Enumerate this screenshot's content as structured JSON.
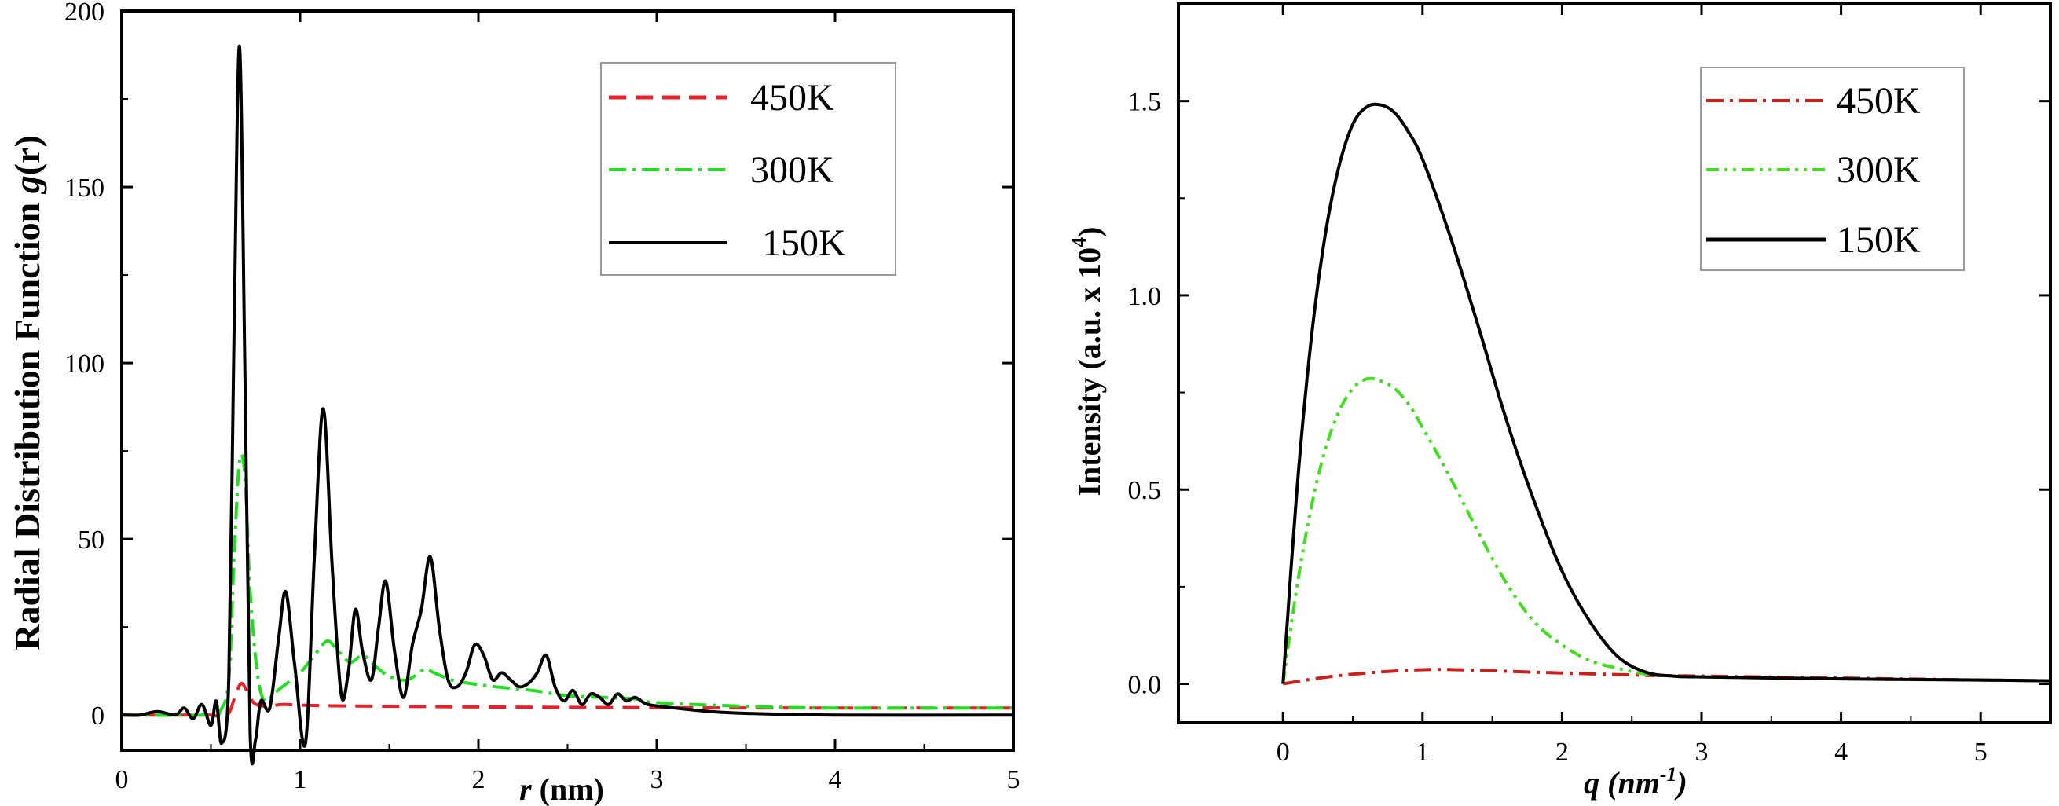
{
  "chart_data": [
    {
      "type": "line",
      "xlabel_var": "r",
      "xlabel_unit": "(nm)",
      "ylabel": "Radial Distribution Function",
      "ylabel_var": "g",
      "ylabel_arg": "(r)",
      "xlim": [
        0,
        5
      ],
      "ylim": [
        -10,
        200
      ],
      "xticks": [
        "0",
        "1",
        "2",
        "3",
        "4",
        "5"
      ],
      "yticks": [
        "0",
        "50",
        "100",
        "150",
        "200"
      ],
      "xtick_values": [
        0,
        1,
        2,
        3,
        4,
        5
      ],
      "ytick_values": [
        0,
        50,
        100,
        150,
        200
      ],
      "legend_position": "top-right",
      "series": [
        {
          "name": "450K",
          "color": "#e8202a",
          "style": "dashed",
          "x": [
            0,
            0.3,
            0.5,
            0.55,
            0.6,
            0.64,
            0.67,
            0.7,
            0.74,
            0.8,
            0.9,
            1.0,
            1.2,
            1.5,
            2.0,
            3.0,
            4.0,
            5.0
          ],
          "y": [
            0,
            0,
            0,
            -0.5,
            0.5,
            6,
            9,
            7,
            3.5,
            2.5,
            3,
            2.8,
            2.6,
            2.5,
            2.3,
            2.1,
            2.0,
            2.0
          ]
        },
        {
          "name": "300K",
          "color": "#22dd22",
          "style": "dashdot",
          "x": [
            0,
            0.5,
            0.55,
            0.6,
            0.63,
            0.66,
            0.69,
            0.72,
            0.76,
            0.8,
            0.85,
            0.9,
            1.0,
            1.08,
            1.15,
            1.2,
            1.28,
            1.35,
            1.42,
            1.5,
            1.6,
            1.7,
            1.75,
            1.85,
            1.95,
            2.1,
            2.3,
            2.5,
            2.7,
            2.9,
            3.0,
            3.5,
            4.0,
            5.0
          ],
          "y": [
            0,
            0,
            1,
            10,
            45,
            72,
            68,
            35,
            12,
            4,
            6,
            8,
            12,
            17,
            21,
            19,
            15,
            17,
            14,
            11,
            10,
            13,
            12,
            10,
            9,
            8,
            7,
            5.5,
            5,
            4.5,
            3.5,
            2.5,
            2.0,
            2.0
          ]
        },
        {
          "name": "150K",
          "color": "#000000",
          "style": "solid",
          "x": [
            0,
            0.1,
            0.2,
            0.3,
            0.35,
            0.4,
            0.45,
            0.5,
            0.53,
            0.56,
            0.6,
            0.63,
            0.66,
            0.69,
            0.72,
            0.75,
            0.78,
            0.83,
            0.88,
            0.92,
            0.97,
            1.03,
            1.08,
            1.13,
            1.18,
            1.23,
            1.27,
            1.31,
            1.35,
            1.4,
            1.44,
            1.48,
            1.53,
            1.58,
            1.63,
            1.68,
            1.73,
            1.78,
            1.83,
            1.88,
            1.93,
            1.98,
            2.03,
            2.08,
            2.13,
            2.18,
            2.23,
            2.28,
            2.33,
            2.38,
            2.43,
            2.48,
            2.53,
            2.58,
            2.63,
            2.68,
            2.73,
            2.78,
            2.83,
            2.88,
            2.95,
            3.1,
            3.3,
            3.5,
            4.0,
            5.0
          ],
          "y": [
            0,
            0,
            1,
            0,
            2,
            -1,
            3,
            -3,
            4,
            -8,
            10,
            110,
            190,
            100,
            -5,
            -7,
            4,
            2,
            22,
            35,
            14,
            -8,
            45,
            87,
            42,
            6,
            12,
            30,
            18,
            10,
            25,
            38,
            18,
            5,
            20,
            30,
            45,
            25,
            10,
            8,
            12,
            20,
            17,
            10,
            12,
            10,
            8,
            9,
            12,
            17,
            8,
            4,
            7,
            3,
            6,
            5,
            3,
            6,
            4,
            5,
            3,
            2,
            1,
            0.5,
            0,
            0
          ]
        }
      ]
    },
    {
      "type": "line",
      "xlabel_var": "q",
      "xlabel_unit": "(nm",
      "xlabel_sup": "-1",
      "xlabel_close": ")",
      "ylabel": "Intensity (a.u. x 10",
      "ylabel_sup": "4",
      "ylabel_close": ")",
      "xlim": [
        -0.75,
        5.5
      ],
      "ylim": [
        -0.1,
        1.75
      ],
      "xticks": [
        "0",
        "1",
        "2",
        "3",
        "4",
        "5"
      ],
      "yticks": [
        "0.0",
        "0.5",
        "1.0",
        "1.5"
      ],
      "xtick_values": [
        0,
        1,
        2,
        3,
        4,
        5
      ],
      "ytick_values": [
        0,
        0.5,
        1.0,
        1.5
      ],
      "legend_position": "top-right",
      "series": [
        {
          "name": "450K",
          "color": "#c8201a",
          "style": "dashdot",
          "x": [
            0,
            0.3,
            0.6,
            0.9,
            1.1,
            1.4,
            1.8,
            2.2,
            2.6,
            3.0,
            4.0,
            5.0,
            5.5
          ],
          "y": [
            0.0,
            0.017,
            0.028,
            0.035,
            0.037,
            0.035,
            0.03,
            0.026,
            0.022,
            0.02,
            0.015,
            0.01,
            0.008
          ]
        },
        {
          "name": "300K",
          "color": "#44dd22",
          "style": "dashdotdot",
          "x": [
            0,
            0.1,
            0.2,
            0.3,
            0.4,
            0.5,
            0.6,
            0.7,
            0.8,
            0.9,
            1.0,
            1.2,
            1.4,
            1.6,
            1.8,
            2.0,
            2.2,
            2.4,
            2.6,
            2.8,
            3.0,
            4.0,
            5.0,
            5.5
          ],
          "y": [
            0.0,
            0.25,
            0.45,
            0.6,
            0.7,
            0.76,
            0.785,
            0.78,
            0.76,
            0.72,
            0.66,
            0.53,
            0.39,
            0.26,
            0.16,
            0.1,
            0.06,
            0.04,
            0.025,
            0.02,
            0.018,
            0.013,
            0.01,
            0.008
          ]
        },
        {
          "name": "150K",
          "color": "#000000",
          "style": "solid",
          "x": [
            0,
            0.1,
            0.2,
            0.3,
            0.4,
            0.5,
            0.6,
            0.7,
            0.8,
            0.9,
            1.0,
            1.2,
            1.4,
            1.6,
            1.8,
            2.0,
            2.2,
            2.4,
            2.6,
            2.8,
            3.0,
            4.0,
            5.0,
            5.5
          ],
          "y": [
            0.0,
            0.5,
            0.88,
            1.15,
            1.33,
            1.44,
            1.485,
            1.49,
            1.47,
            1.42,
            1.35,
            1.15,
            0.92,
            0.68,
            0.47,
            0.29,
            0.16,
            0.07,
            0.03,
            0.02,
            0.018,
            0.013,
            0.01,
            0.008
          ]
        }
      ]
    }
  ]
}
